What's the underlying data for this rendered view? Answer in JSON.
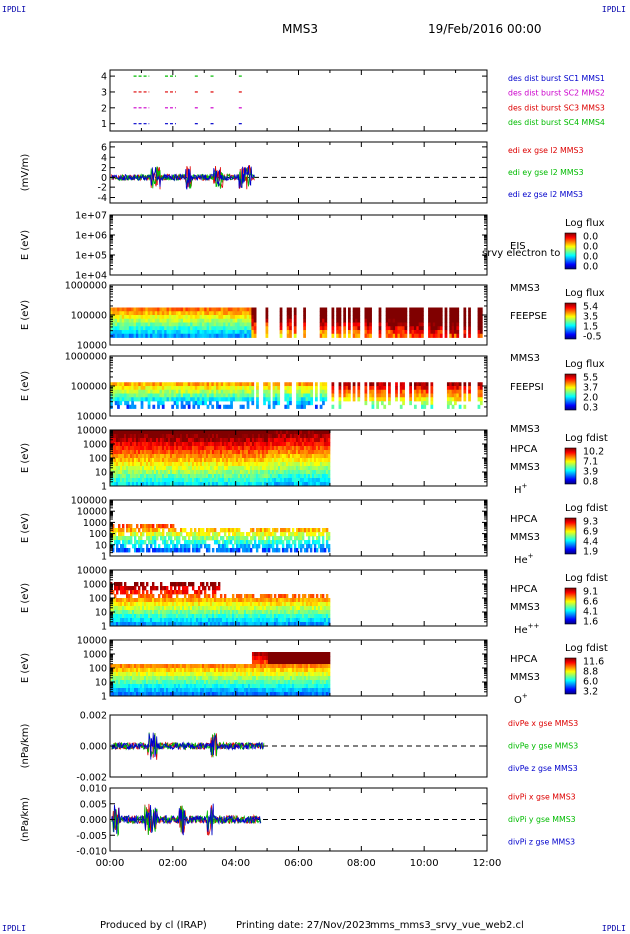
{
  "corner_labels": [
    "IPDLI",
    "IPDLI",
    "IPDLI",
    "IPDLI"
  ],
  "header": {
    "spacecraft": "MMS3",
    "date": "19/Feb/2016 00:00"
  },
  "footer": {
    "producer": "Produced by cl (IRAP)",
    "printing": "Printing date: 27/Nov/2023",
    "file": "mms_mms3_srvy_vue_web2.cl"
  },
  "colors": {
    "red": "#dd0000",
    "green": "#00bb00",
    "blue": "#0000cc",
    "magenta": "#cc00cc"
  },
  "chart_data": {
    "type": "stacked-timeseries",
    "x_range_hours": [
      0,
      12
    ],
    "x_ticks": [
      "00:00",
      "02:00",
      "04:00",
      "06:00",
      "08:00",
      "10:00",
      "12:00"
    ],
    "panels": [
      {
        "id": "burst",
        "type": "line",
        "ylabel": "",
        "y_ticks": [
          "4",
          "3",
          "2",
          "1"
        ],
        "legend": [
          {
            "text": "des dist burst SC1 MMS1",
            "color": "blue"
          },
          {
            "text": "des dist burst SC2 MMS2",
            "color": "magenta"
          },
          {
            "text": "des dist burst SC3 MMS3",
            "color": "red"
          },
          {
            "text": "des dist burst SC4 MMS4",
            "color": "green"
          }
        ]
      },
      {
        "id": "edi",
        "type": "line",
        "ylabel": "(mV/m)",
        "y_ticks": [
          "6",
          "4",
          "2",
          "0",
          "-2",
          "-4"
        ],
        "legend": [
          {
            "text": "edi ex gse l2 MMS3",
            "color": "red"
          },
          {
            "text": "edi ey gse l2 MMS3",
            "color": "green"
          },
          {
            "text": "edi ez gse l2 MMS3",
            "color": "blue"
          }
        ]
      },
      {
        "id": "eis",
        "type": "heatmap",
        "ylabel": "E (eV)",
        "y_ticks": [
          "1e+07",
          "1e+06",
          "1e+05",
          "1e+04"
        ],
        "instrument": [
          "EIS",
          "MMS3"
        ],
        "overlay": "srvy electron to",
        "colorbar": {
          "title": "Log flux",
          "ticks": [
            "0.0",
            "0.0",
            "0.0",
            "0.0"
          ]
        },
        "empty": true
      },
      {
        "id": "feepse",
        "type": "heatmap",
        "ylabel": "E (eV)",
        "y_ticks": [
          "1000000",
          "100000",
          "10000"
        ],
        "instrument": [
          "FEEPSE",
          "MMS3"
        ],
        "colorbar": {
          "title": "Log flux",
          "ticks": [
            "5.4",
            "3.5",
            "1.5",
            "-0.5"
          ]
        }
      },
      {
        "id": "feepsi",
        "type": "heatmap",
        "ylabel": "E (eV)",
        "y_ticks": [
          "1000000",
          "100000",
          "10000"
        ],
        "instrument": [
          "FEEPSI",
          "MMS3"
        ],
        "colorbar": {
          "title": "Log flux",
          "ticks": [
            "5.5",
            "3.7",
            "2.0",
            "0.3"
          ]
        }
      },
      {
        "id": "hpca-h",
        "type": "heatmap",
        "ylabel": "E (eV)",
        "y_ticks": [
          "10000",
          "1000",
          "100",
          "10",
          "1"
        ],
        "instrument": [
          "HPCA",
          "MMS3"
        ],
        "species": "H",
        "species_sup": "+",
        "colorbar": {
          "title": "Log fdist",
          "ticks": [
            "10.2",
            "7.1",
            "3.9",
            "0.8"
          ]
        }
      },
      {
        "id": "hpca-he",
        "type": "heatmap",
        "ylabel": "E (eV)",
        "y_ticks": [
          "100000",
          "10000",
          "1000",
          "100",
          "10",
          "1"
        ],
        "instrument": [
          "HPCA",
          "MMS3"
        ],
        "species": "He",
        "species_sup": "+",
        "colorbar": {
          "title": "Log fdist",
          "ticks": [
            "9.3",
            "6.9",
            "4.4",
            "1.9"
          ]
        }
      },
      {
        "id": "hpca-hepp",
        "type": "heatmap",
        "ylabel": "E (eV)",
        "y_ticks": [
          "10000",
          "1000",
          "100",
          "10",
          "1"
        ],
        "instrument": [
          "HPCA",
          "MMS3"
        ],
        "species": "He",
        "species_sup": "++",
        "colorbar": {
          "title": "Log fdist",
          "ticks": [
            "9.1",
            "6.6",
            "4.1",
            "1.6"
          ]
        }
      },
      {
        "id": "hpca-o",
        "type": "heatmap",
        "ylabel": "E (eV)",
        "y_ticks": [
          "10000",
          "1000",
          "100",
          "10",
          "1"
        ],
        "instrument": [
          "HPCA",
          "MMS3"
        ],
        "species": "O",
        "species_sup": "+",
        "colorbar": {
          "title": "Log fdist",
          "ticks": [
            "11.6",
            "8.8",
            "6.0",
            "3.2"
          ]
        }
      },
      {
        "id": "divpe",
        "type": "line",
        "ylabel": "(nPa/km)",
        "y_ticks": [
          "0.002",
          "0.000",
          "-0.002"
        ],
        "legend": [
          {
            "text": "divPe x gse MMS3",
            "color": "red"
          },
          {
            "text": "divPe y gse MMS3",
            "color": "green"
          },
          {
            "text": "divPe z gse MMS3",
            "color": "blue"
          }
        ]
      },
      {
        "id": "divpi",
        "type": "line",
        "ylabel": "(nPa/km)",
        "y_ticks": [
          "0.010",
          "0.005",
          "0.000",
          "-0.005",
          "-0.010"
        ],
        "legend": [
          {
            "text": "divPi x gse MMS3",
            "color": "red"
          },
          {
            "text": "divPi y gse MMS3",
            "color": "green"
          },
          {
            "text": "divPi z gse MMS3",
            "color": "blue"
          }
        ]
      }
    ]
  }
}
